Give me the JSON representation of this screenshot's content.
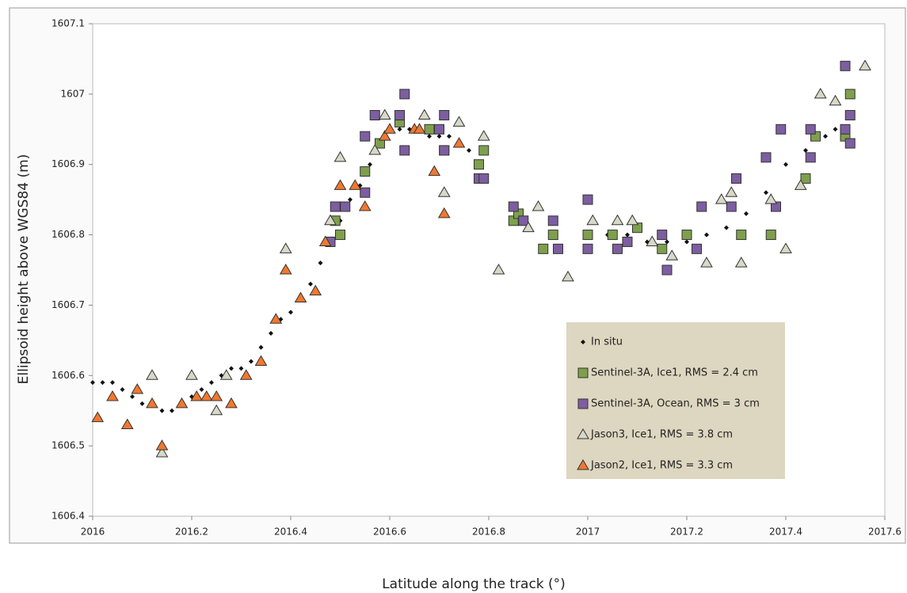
{
  "chart_data": {
    "type": "scatter",
    "x_label": "Latitude along the track (°)",
    "y_label": "Ellipsoid height above  WGS84 (m)",
    "xlim": [
      2016,
      2017.6
    ],
    "xticks": [
      2016,
      2016.2,
      2016.4,
      2016.6,
      2016.8,
      2017,
      2017.2,
      2017.4,
      2017.6
    ],
    "ylim": [
      1606.4,
      1607.1
    ],
    "yticks": [
      1606.4,
      1606.5,
      1606.6,
      1606.7,
      1606.8,
      1606.9,
      1607,
      1607.1
    ],
    "series": [
      {
        "name": "In situ",
        "color": "#111111",
        "marker": "diamond",
        "x": [
          2016.0,
          2016.02,
          2016.04,
          2016.06,
          2016.08,
          2016.1,
          2016.12,
          2016.14,
          2016.16,
          2016.18,
          2016.2,
          2016.22,
          2016.24,
          2016.26,
          2016.28,
          2016.3,
          2016.32,
          2016.34,
          2016.36,
          2016.38,
          2016.4,
          2016.42,
          2016.44,
          2016.46,
          2016.48,
          2016.5,
          2016.52,
          2016.54,
          2016.56,
          2016.58,
          2016.6,
          2016.62,
          2016.64,
          2016.66,
          2016.68,
          2016.7,
          2016.72,
          2016.74,
          2016.76,
          2017.0,
          2017.04,
          2017.08,
          2017.12,
          2017.16,
          2017.2,
          2017.24,
          2017.28,
          2017.32,
          2017.36,
          2017.4,
          2017.44,
          2017.48,
          2017.5
        ],
        "values": [
          1606.59,
          1606.59,
          1606.59,
          1606.58,
          1606.57,
          1606.56,
          1606.56,
          1606.55,
          1606.55,
          1606.56,
          1606.57,
          1606.58,
          1606.59,
          1606.6,
          1606.61,
          1606.61,
          1606.62,
          1606.64,
          1606.66,
          1606.68,
          1606.69,
          1606.71,
          1606.73,
          1606.76,
          1606.79,
          1606.82,
          1606.85,
          1606.87,
          1606.9,
          1606.93,
          1606.95,
          1606.95,
          1606.95,
          1606.95,
          1606.94,
          1606.94,
          1606.94,
          1606.93,
          1606.92,
          1606.8,
          1606.8,
          1606.8,
          1606.79,
          1606.79,
          1606.79,
          1606.8,
          1606.81,
          1606.83,
          1606.86,
          1606.9,
          1606.92,
          1606.94,
          1606.95
        ]
      },
      {
        "name": "Sentinel-3A, Ice1, RMS = 2.4 cm",
        "color": "#7ea04d",
        "marker": "square",
        "x": [
          2016.49,
          2016.5,
          2016.55,
          2016.58,
          2016.62,
          2016.68,
          2016.71,
          2016.78,
          2016.79,
          2016.85,
          2016.86,
          2016.91,
          2016.93,
          2017.0,
          2017.05,
          2017.1,
          2017.15,
          2017.2,
          2017.31,
          2017.37,
          2017.44,
          2017.46,
          2017.52,
          2017.53
        ],
        "values": [
          1606.82,
          1606.8,
          1606.89,
          1606.93,
          1606.96,
          1606.95,
          1606.92,
          1606.9,
          1606.92,
          1606.82,
          1606.83,
          1606.78,
          1606.8,
          1606.8,
          1606.8,
          1606.81,
          1606.78,
          1606.8,
          1606.8,
          1606.8,
          1606.88,
          1606.94,
          1606.94,
          1607.0
        ]
      },
      {
        "name": "Sentinel-3A, Ocean, RMS = 3 cm",
        "color": "#7d5ea0",
        "marker": "square",
        "x": [
          2016.48,
          2016.49,
          2016.51,
          2016.55,
          2016.55,
          2016.57,
          2016.62,
          2016.63,
          2016.63,
          2016.7,
          2016.71,
          2016.71,
          2016.78,
          2016.79,
          2016.85,
          2016.87,
          2016.93,
          2016.94,
          2017.0,
          2017.0,
          2017.06,
          2017.08,
          2017.15,
          2017.16,
          2017.22,
          2017.23,
          2017.29,
          2017.3,
          2017.36,
          2017.38,
          2017.39,
          2017.45,
          2017.45,
          2017.52,
          2017.52,
          2017.53,
          2017.53
        ],
        "values": [
          1606.79,
          1606.84,
          1606.84,
          1606.86,
          1606.94,
          1606.97,
          1606.97,
          1607.0,
          1606.92,
          1606.95,
          1606.92,
          1606.97,
          1606.88,
          1606.88,
          1606.84,
          1606.82,
          1606.82,
          1606.78,
          1606.85,
          1606.78,
          1606.78,
          1606.79,
          1606.8,
          1606.75,
          1606.78,
          1606.84,
          1606.84,
          1606.88,
          1606.91,
          1606.84,
          1606.95,
          1606.91,
          1606.95,
          1606.95,
          1607.04,
          1606.93,
          1606.97
        ]
      },
      {
        "name": "Jason3, Ice1, RMS = 3.8 cm",
        "color": "#d8d8c8",
        "marker": "triangle",
        "x": [
          2016.12,
          2016.2,
          2016.14,
          2016.25,
          2016.27,
          2016.39,
          2016.48,
          2016.5,
          2016.57,
          2016.59,
          2016.67,
          2016.71,
          2016.74,
          2016.79,
          2016.82,
          2016.88,
          2016.9,
          2016.96,
          2017.01,
          2017.06,
          2017.09,
          2017.13,
          2017.17,
          2017.24,
          2017.27,
          2017.29,
          2017.31,
          2017.37,
          2017.4,
          2017.43,
          2017.47,
          2017.5,
          2017.56
        ],
        "values": [
          1606.6,
          1606.6,
          1606.49,
          1606.55,
          1606.6,
          1606.78,
          1606.82,
          1606.91,
          1606.92,
          1606.97,
          1606.97,
          1606.86,
          1606.96,
          1606.94,
          1606.75,
          1606.81,
          1606.84,
          1606.74,
          1606.82,
          1606.82,
          1606.82,
          1606.79,
          1606.77,
          1606.76,
          1606.85,
          1606.86,
          1606.76,
          1606.85,
          1606.78,
          1606.87,
          1607.0,
          1606.99,
          1607.04
        ]
      },
      {
        "name": "Jason2, Ice1, RMS = 3.3 cm",
        "color": "#f07830",
        "marker": "triangle",
        "x": [
          2016.01,
          2016.04,
          2016.07,
          2016.09,
          2016.12,
          2016.14,
          2016.18,
          2016.21,
          2016.23,
          2016.25,
          2016.28,
          2016.31,
          2016.34,
          2016.37,
          2016.39,
          2016.42,
          2016.45,
          2016.47,
          2016.5,
          2016.53,
          2016.55,
          2016.59,
          2016.6,
          2016.65,
          2016.66,
          2016.69,
          2016.71,
          2016.74
        ],
        "values": [
          1606.54,
          1606.57,
          1606.53,
          1606.58,
          1606.56,
          1606.5,
          1606.56,
          1606.57,
          1606.57,
          1606.57,
          1606.56,
          1606.6,
          1606.62,
          1606.68,
          1606.75,
          1606.71,
          1606.72,
          1606.79,
          1606.87,
          1606.87,
          1606.84,
          1606.94,
          1606.95,
          1606.95,
          1606.95,
          1606.89,
          1606.83,
          1606.93
        ]
      }
    ]
  }
}
